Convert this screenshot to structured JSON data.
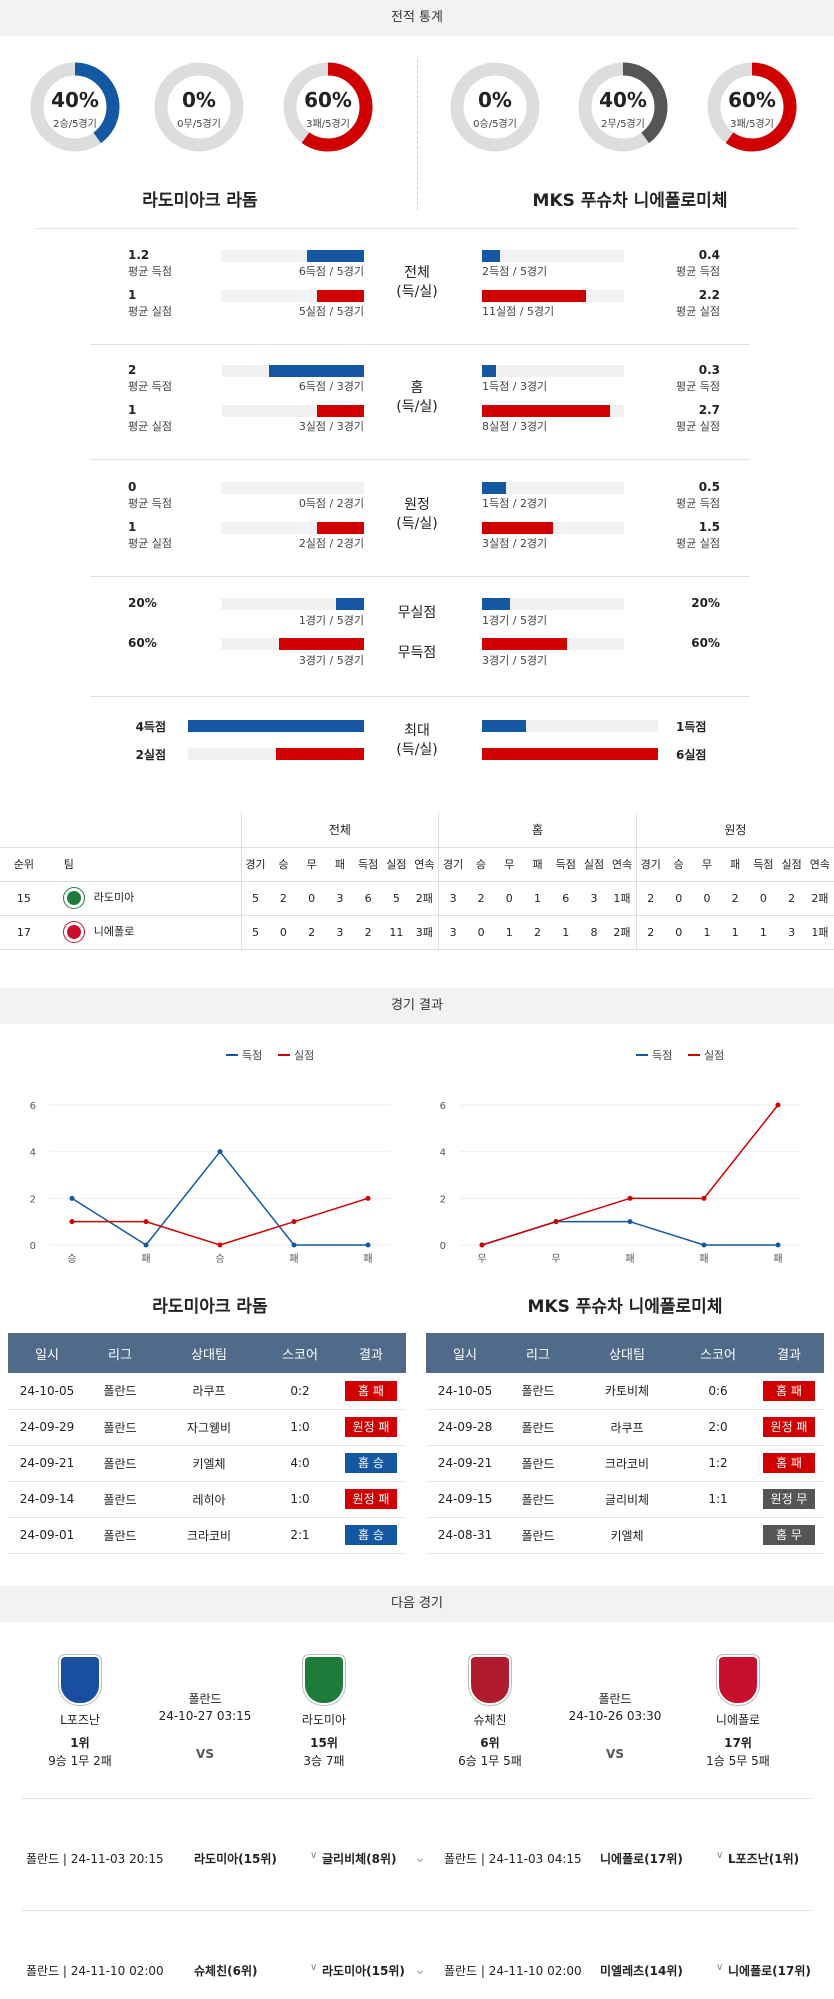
{
  "sections": {
    "stats_title": "전적 통계",
    "results_title": "경기 결과",
    "next_title": "다음 경기"
  },
  "colors": {
    "blue": "#1458a3",
    "red": "#d00000",
    "gray": "#555555",
    "track": "#dddddd",
    "header": "#506a8a"
  },
  "home": {
    "name": "라도미아크 라돔",
    "donuts": [
      {
        "pct": "40%",
        "sub": "2승/5경기",
        "value": 0.4,
        "color": "blue"
      },
      {
        "pct": "0%",
        "sub": "0무/5경기",
        "value": 0,
        "color": "gray"
      },
      {
        "pct": "60%",
        "sub": "3패/5경기",
        "value": 0.6,
        "color": "red"
      }
    ]
  },
  "away": {
    "name": "MKS 푸슈차 니에폴로미체",
    "donuts": [
      {
        "pct": "0%",
        "sub": "0승/5경기",
        "value": 0,
        "color": "blue"
      },
      {
        "pct": "40%",
        "sub": "2무/5경기",
        "value": 0.4,
        "color": "gray"
      },
      {
        "pct": "60%",
        "sub": "3패/5경기",
        "value": 0.6,
        "color": "red"
      }
    ]
  },
  "stat_groups": [
    {
      "center": [
        "전체",
        "(득/실)"
      ],
      "rows": [
        {
          "home_val": "1.2",
          "home_lbl": "평균 득점",
          "home_cnt": "6득점 / 5경기",
          "home_frac": 0.4,
          "away_val": "0.4",
          "away_lbl": "평균 득점",
          "away_cnt": "2득점 / 5경기",
          "away_frac": 0.13,
          "color": "blue"
        },
        {
          "home_val": "1",
          "home_lbl": "평균 실점",
          "home_cnt": "5실점 / 5경기",
          "home_frac": 0.33,
          "away_val": "2.2",
          "away_lbl": "평균 실점",
          "away_cnt": "11실점 / 5경기",
          "away_frac": 0.73,
          "color": "red"
        }
      ]
    },
    {
      "center": [
        "홈",
        "(득/실)"
      ],
      "rows": [
        {
          "home_val": "2",
          "home_lbl": "평균 득점",
          "home_cnt": "6득점 / 3경기",
          "home_frac": 0.67,
          "away_val": "0.3",
          "away_lbl": "평균 득점",
          "away_cnt": "1득점 / 3경기",
          "away_frac": 0.1,
          "color": "blue"
        },
        {
          "home_val": "1",
          "home_lbl": "평균 실점",
          "home_cnt": "3실점 / 3경기",
          "home_frac": 0.33,
          "away_val": "2.7",
          "away_lbl": "평균 실점",
          "away_cnt": "8실점 / 3경기",
          "away_frac": 0.9,
          "color": "red"
        }
      ]
    },
    {
      "center": [
        "원정",
        "(득/실)"
      ],
      "rows": [
        {
          "home_val": "0",
          "home_lbl": "평균 득점",
          "home_cnt": "0득점 / 2경기",
          "home_frac": 0,
          "away_val": "0.5",
          "away_lbl": "평균 득점",
          "away_cnt": "1득점 / 2경기",
          "away_frac": 0.17,
          "color": "blue"
        },
        {
          "home_val": "1",
          "home_lbl": "평균 실점",
          "home_cnt": "2실점 / 2경기",
          "home_frac": 0.33,
          "away_val": "1.5",
          "away_lbl": "평균 실점",
          "away_cnt": "3실점 / 2경기",
          "away_frac": 0.5,
          "color": "red"
        }
      ]
    }
  ],
  "clean": [
    {
      "center": "무실점",
      "home_val": "20%",
      "home_cnt": "1경기 / 5경기",
      "home_frac": 0.2,
      "away_val": "20%",
      "away_cnt": "1경기 / 5경기",
      "away_frac": 0.2,
      "color": "blue"
    },
    {
      "center": "무득점",
      "home_val": "60%",
      "home_cnt": "3경기 / 5경기",
      "home_frac": 0.6,
      "away_val": "60%",
      "away_cnt": "3경기 / 5경기",
      "away_frac": 0.6,
      "color": "red"
    }
  ],
  "max": {
    "center": [
      "최대",
      "(득/실)"
    ],
    "rows": [
      {
        "home_val": "4득점",
        "home_frac": 1,
        "away_val": "1득점",
        "away_frac": 0.25,
        "color": "blue"
      },
      {
        "home_val": "2실점",
        "home_frac": 0.5,
        "away_val": "6실점",
        "away_frac": 1,
        "color": "red"
      }
    ]
  },
  "rank_table": {
    "groups": [
      "전체",
      "홈",
      "원정"
    ],
    "headers": [
      "순위",
      "팀",
      "경기",
      "승",
      "무",
      "패",
      "득점",
      "실점",
      "연속",
      "경기",
      "승",
      "무",
      "패",
      "득점",
      "실점",
      "연속",
      "경기",
      "승",
      "무",
      "패",
      "득점",
      "실점",
      "연속"
    ],
    "rows": [
      {
        "logo_color": "#1e7b3a",
        "cells": [
          "15",
          "라도미아",
          "5",
          "2",
          "0",
          "3",
          "6",
          "5",
          "2패",
          "3",
          "2",
          "0",
          "1",
          "6",
          "3",
          "1패",
          "2",
          "0",
          "0",
          "2",
          "0",
          "2",
          "2패"
        ]
      },
      {
        "logo_color": "#c8102e",
        "cells": [
          "17",
          "니에폴로",
          "5",
          "0",
          "2",
          "3",
          "2",
          "11",
          "3패",
          "3",
          "0",
          "1",
          "2",
          "1",
          "8",
          "2패",
          "2",
          "0",
          "1",
          "1",
          "1",
          "3",
          "1패"
        ]
      }
    ]
  },
  "legend": {
    "scored": "득점",
    "conceded": "실점"
  },
  "chart_data": [
    {
      "type": "line",
      "categories": [
        "승",
        "패",
        "승",
        "패",
        "패"
      ],
      "series": [
        {
          "name": "득점",
          "values": [
            2,
            0,
            4,
            0,
            0
          ],
          "color": "#1458a3"
        },
        {
          "name": "실점",
          "values": [
            1,
            1,
            0,
            1,
            2
          ],
          "color": "#d00000"
        }
      ],
      "yticks": [
        "0",
        "2",
        "4",
        "6"
      ],
      "ylim": [
        0,
        6
      ]
    },
    {
      "type": "line",
      "categories": [
        "무",
        "무",
        "패",
        "패",
        "패"
      ],
      "series": [
        {
          "name": "득점",
          "values": [
            0,
            1,
            1,
            0,
            0
          ],
          "color": "#1458a3"
        },
        {
          "name": "실점",
          "values": [
            0,
            1,
            2,
            2,
            6
          ],
          "color": "#d00000"
        }
      ],
      "yticks": [
        "0",
        "2",
        "4",
        "6"
      ],
      "ylim": [
        0,
        6
      ]
    }
  ],
  "match_headers": [
    "일시",
    "리그",
    "상대팀",
    "스코어",
    "결과"
  ],
  "home_matches": [
    {
      "date": "24-10-05",
      "league": "폴란드",
      "opp": "라쿠프",
      "score": "0:2",
      "result": "홈 패",
      "color": "#d00000"
    },
    {
      "date": "24-09-29",
      "league": "폴란드",
      "opp": "자그웽비",
      "score": "1:0",
      "result": "원정 패",
      "color": "#d00000"
    },
    {
      "date": "24-09-21",
      "league": "폴란드",
      "opp": "키엘체",
      "score": "4:0",
      "result": "홈 승",
      "color": "#1458a3"
    },
    {
      "date": "24-09-14",
      "league": "폴란드",
      "opp": "레히아",
      "score": "1:0",
      "result": "원정 패",
      "color": "#d00000"
    },
    {
      "date": "24-09-01",
      "league": "폴란드",
      "opp": "크라코비",
      "score": "2:1",
      "result": "홈 승",
      "color": "#1458a3"
    }
  ],
  "away_matches": [
    {
      "date": "24-10-05",
      "league": "폴란드",
      "opp": "카토비체",
      "score": "0:6",
      "result": "홈 패",
      "color": "#d00000"
    },
    {
      "date": "24-09-28",
      "league": "폴란드",
      "opp": "라쿠프",
      "score": "2:0",
      "result": "원정 패",
      "color": "#d00000"
    },
    {
      "date": "24-09-21",
      "league": "폴란드",
      "opp": "크라코비",
      "score": "1:2",
      "result": "홈 패",
      "color": "#d00000"
    },
    {
      "date": "24-09-15",
      "league": "폴란드",
      "opp": "글리비체",
      "score": "1:1",
      "result": "원정 무",
      "color": "#555555"
    },
    {
      "date": "24-08-31",
      "league": "폴란드",
      "opp": "키엘체",
      "score": "",
      "result": "홈 무",
      "color": "#555555"
    }
  ],
  "next_games": [
    {
      "team1": {
        "name": "L포즈난",
        "rank": "1위",
        "record": "9승 1무 2패",
        "logo_color": "#1a4fa0"
      },
      "league": "폴란드",
      "datetime": "24-10-27 03:15",
      "vs": "VS",
      "team2": {
        "name": "라도미아",
        "rank": "15위",
        "record": "3승 7패",
        "logo_color": "#1e7b3a"
      }
    },
    {
      "team1": {
        "name": "슈체친",
        "rank": "6위",
        "record": "6승 1무 5패",
        "logo_color": "#b01c2e"
      },
      "league": "폴란드",
      "datetime": "24-10-26 03:30",
      "vs": "VS",
      "team2": {
        "name": "니에폴로",
        "rank": "17위",
        "record": "1승 5무 5패",
        "logo_color": "#c8102e"
      }
    }
  ],
  "future": [
    {
      "left": {
        "info": "폴란드 | 24-11-03 20:15",
        "home": "라도미아(15위)",
        "away": "글리비체(8위)"
      },
      "right": {
        "info": "폴란드 | 24-11-03 04:15",
        "home": "니에폴로(17위)",
        "away": "L포즈난(1위)"
      }
    },
    {
      "left": {
        "info": "폴란드 | 24-11-10 02:00",
        "home": "슈체친(6위)",
        "away": "라도미아(15위)"
      },
      "right": {
        "info": "폴란드 | 24-11-10 02:00",
        "home": "미엘레츠(14위)",
        "away": "니에폴로(17위)"
      }
    }
  ]
}
